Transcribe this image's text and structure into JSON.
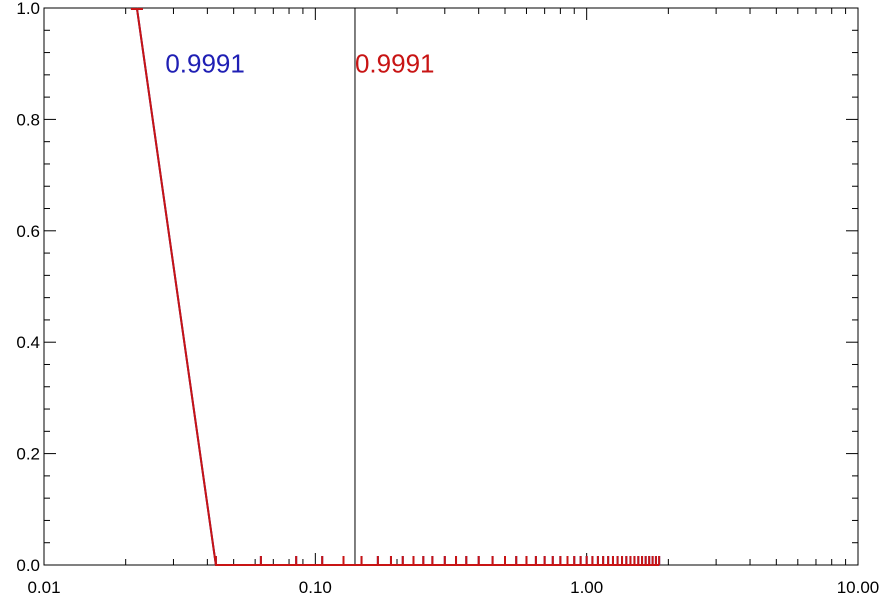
{
  "chart_data": {
    "type": "line",
    "title": "",
    "xlabel": "",
    "ylabel": "",
    "xscale": "log",
    "xlim": [
      0.01,
      10.0
    ],
    "ylim": [
      0.0,
      1.0
    ],
    "xticks": [
      "0.01",
      "0.10",
      "1.00",
      "10.00"
    ],
    "yticks": [
      "0.0",
      "0.2",
      "0.4",
      "0.6",
      "0.8",
      "1.0"
    ],
    "grid": false,
    "colors": {
      "series_a": "#1f1fb4",
      "series_b": "#c81414",
      "vline": "#000000"
    },
    "vertical_line_x": 0.14,
    "annotations": [
      {
        "text": "0.9991",
        "color": "#1f1fb4",
        "x": 0.028,
        "y": 0.9
      },
      {
        "text": "0.9991",
        "color": "#c81414",
        "x": 0.14,
        "y": 0.9
      }
    ],
    "series": [
      {
        "x": [
          0.022,
          0.043,
          0.063,
          0.085,
          0.106,
          0.127,
          0.148,
          0.17,
          0.19,
          0.21,
          0.23,
          0.25,
          0.27,
          0.3,
          0.33,
          0.36,
          0.4,
          0.45,
          0.5,
          0.55,
          0.6,
          0.65,
          0.7,
          0.75,
          0.8,
          0.85,
          0.9,
          0.95,
          1.0,
          1.05,
          1.1,
          1.15,
          1.2,
          1.25,
          1.3,
          1.35,
          1.4,
          1.45,
          1.5,
          1.55,
          1.6,
          1.65,
          1.7,
          1.75,
          1.8,
          1.85
        ],
        "values": [
          1.0,
          0.0,
          0.0,
          0.0,
          0.0,
          0.0,
          0.0,
          0.0,
          0.0,
          0.0,
          0.0,
          0.0,
          0.0,
          0.0,
          0.0,
          0.0,
          0.0,
          0.0,
          0.0,
          0.0,
          0.0,
          0.0,
          0.0,
          0.0,
          0.0,
          0.0,
          0.0,
          0.0,
          0.0,
          0.0,
          0.0,
          0.0,
          0.0,
          0.0,
          0.0,
          0.0,
          0.0,
          0.0,
          0.0,
          0.0,
          0.0,
          0.0,
          0.0,
          0.0,
          0.0,
          0.0
        ]
      },
      {
        "x": [
          0.022,
          0.043,
          0.063,
          0.085,
          0.106,
          0.127,
          0.148,
          0.17,
          0.19,
          0.21,
          0.23,
          0.25,
          0.27,
          0.3,
          0.33,
          0.36,
          0.4,
          0.45,
          0.5,
          0.55,
          0.6,
          0.65,
          0.7,
          0.75,
          0.8,
          0.85,
          0.9,
          0.95,
          1.0,
          1.05,
          1.1,
          1.15,
          1.2,
          1.25,
          1.3,
          1.35,
          1.4,
          1.45,
          1.5,
          1.55,
          1.6,
          1.65,
          1.7,
          1.75,
          1.8,
          1.85
        ],
        "values": [
          1.0,
          0.0,
          0.0,
          0.0,
          0.0,
          0.0,
          0.0,
          0.0,
          0.0,
          0.0,
          0.0,
          0.0,
          0.0,
          0.0,
          0.0,
          0.0,
          0.0,
          0.0,
          0.0,
          0.0,
          0.0,
          0.0,
          0.0,
          0.0,
          0.0,
          0.0,
          0.0,
          0.0,
          0.0,
          0.0,
          0.0,
          0.0,
          0.0,
          0.0,
          0.0,
          0.0,
          0.0,
          0.0,
          0.0,
          0.0,
          0.0,
          0.0,
          0.0,
          0.0,
          0.0,
          0.0
        ]
      }
    ]
  }
}
